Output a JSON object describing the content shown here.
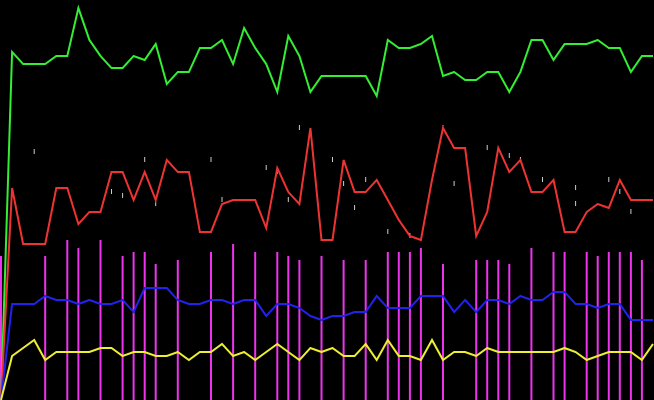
{
  "chart_data": {
    "type": "line",
    "background": "#000000",
    "grid": false,
    "legend": "none",
    "ylim": [
      0,
      100
    ],
    "x": [
      0,
      1,
      2,
      3,
      4,
      5,
      6,
      7,
      8,
      9,
      10,
      11,
      12,
      13,
      14,
      15,
      16,
      17,
      18,
      19,
      20,
      21,
      22,
      23,
      24,
      25,
      26,
      27,
      28,
      29,
      30,
      31,
      32,
      33,
      34,
      35,
      36,
      37,
      38,
      39,
      40,
      41,
      42,
      43,
      44,
      45,
      46,
      47,
      48,
      49,
      50,
      51,
      52,
      53,
      54,
      55,
      56,
      57,
      58,
      59
    ],
    "series": [
      {
        "kind": "line",
        "color": "#33ee33",
        "values": [
          0,
          87,
          84,
          84,
          84,
          86,
          86,
          98,
          90,
          86,
          83,
          83,
          86,
          85,
          89,
          79,
          82,
          82,
          88,
          88,
          90,
          84,
          93,
          88,
          84,
          77,
          91,
          86,
          77,
          81,
          81,
          81,
          81,
          81,
          76,
          90,
          88,
          88,
          89,
          91,
          81,
          82,
          80,
          80,
          82,
          82,
          77,
          82,
          90,
          90,
          85,
          89,
          89,
          89,
          90,
          88,
          88,
          82,
          86,
          86
        ]
      },
      {
        "kind": "line",
        "color": "#ee3333",
        "values": [
          0,
          53,
          39,
          39,
          39,
          53,
          53,
          44,
          47,
          47,
          57,
          57,
          50,
          57,
          50,
          60,
          57,
          57,
          42,
          42,
          49,
          50,
          50,
          50,
          43,
          58,
          52,
          49,
          68,
          40,
          40,
          60,
          52,
          52,
          55,
          50,
          45,
          41,
          40,
          55,
          68,
          63,
          63,
          41,
          47,
          63,
          57,
          60,
          52,
          52,
          55,
          42,
          42,
          47,
          49,
          48,
          55,
          50,
          50,
          50
        ]
      },
      {
        "kind": "line",
        "color": "#2222ee",
        "values": [
          0,
          24,
          24,
          24,
          26,
          25,
          25,
          24,
          25,
          24,
          24,
          25,
          22,
          28,
          28,
          28,
          25,
          24,
          24,
          25,
          25,
          24,
          25,
          25,
          21,
          24,
          24,
          23,
          21,
          20,
          21,
          21,
          22,
          22,
          26,
          23,
          23,
          23,
          26,
          26,
          26,
          22,
          25,
          22,
          25,
          25,
          24,
          26,
          25,
          25,
          27,
          27,
          24,
          24,
          23,
          24,
          24,
          20,
          20,
          20
        ]
      },
      {
        "kind": "line",
        "color": "#eeee33",
        "values": [
          0,
          11,
          13,
          15,
          10,
          12,
          12,
          12,
          12,
          13,
          13,
          11,
          12,
          12,
          11,
          11,
          12,
          10,
          12,
          12,
          14,
          11,
          12,
          10,
          12,
          14,
          12,
          10,
          13,
          12,
          13,
          11,
          11,
          14,
          10,
          15,
          11,
          11,
          10,
          15,
          10,
          12,
          12,
          11,
          13,
          12,
          12,
          12,
          12,
          12,
          12,
          13,
          12,
          10,
          11,
          12,
          12,
          12,
          10,
          14
        ]
      },
      {
        "kind": "spikes",
        "color": "#ee33ee",
        "values": [
          [
            0,
            36
          ],
          [
            4,
            36
          ],
          [
            6,
            40
          ],
          [
            7,
            38
          ],
          [
            9,
            40
          ],
          [
            11,
            36
          ],
          [
            12,
            37
          ],
          [
            13,
            37
          ],
          [
            14,
            34
          ],
          [
            16,
            35
          ],
          [
            19,
            37
          ],
          [
            21,
            39
          ],
          [
            23,
            37
          ],
          [
            25,
            37
          ],
          [
            26,
            36
          ],
          [
            27,
            35
          ],
          [
            29,
            36
          ],
          [
            31,
            35
          ],
          [
            33,
            35
          ],
          [
            35,
            37
          ],
          [
            36,
            37
          ],
          [
            37,
            37
          ],
          [
            38,
            38
          ],
          [
            40,
            34
          ],
          [
            43,
            35
          ],
          [
            44,
            35
          ],
          [
            45,
            35
          ],
          [
            46,
            34
          ],
          [
            48,
            38
          ],
          [
            50,
            37
          ],
          [
            51,
            37
          ],
          [
            53,
            37
          ],
          [
            54,
            36
          ],
          [
            55,
            37
          ],
          [
            56,
            37
          ],
          [
            57,
            37
          ],
          [
            58,
            35
          ]
        ]
      },
      {
        "kind": "points",
        "color": "#cccccc",
        "values": [
          [
            3,
            62
          ],
          [
            10,
            52
          ],
          [
            11,
            51
          ],
          [
            13,
            60
          ],
          [
            14,
            49
          ],
          [
            19,
            60
          ],
          [
            20,
            50
          ],
          [
            24,
            58
          ],
          [
            25,
            57
          ],
          [
            26,
            50
          ],
          [
            27,
            68
          ],
          [
            30,
            60
          ],
          [
            31,
            54
          ],
          [
            32,
            48
          ],
          [
            33,
            55
          ],
          [
            35,
            42
          ],
          [
            37,
            41
          ],
          [
            40,
            68
          ],
          [
            41,
            54
          ],
          [
            44,
            63
          ],
          [
            46,
            61
          ],
          [
            47,
            60
          ],
          [
            49,
            55
          ],
          [
            52,
            49
          ],
          [
            52,
            53
          ],
          [
            55,
            55
          ],
          [
            56,
            52
          ],
          [
            57,
            47
          ]
        ]
      }
    ]
  }
}
